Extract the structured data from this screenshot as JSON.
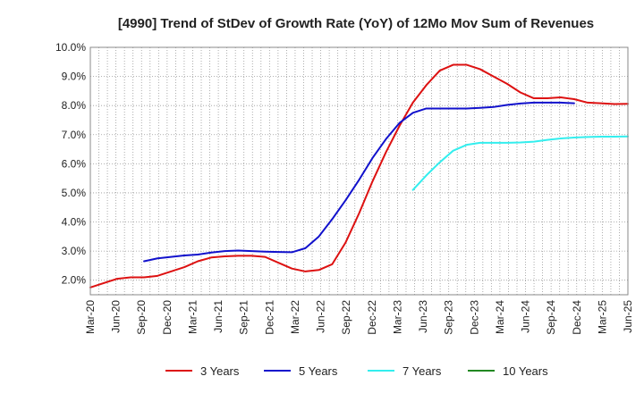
{
  "chart_data": {
    "type": "line",
    "title": "[4990]  Trend of StDev of Growth Rate (YoY) of 12Mo Mov Sum of Revenues",
    "xlabel": "",
    "ylabel": "",
    "y_unit": "%",
    "ylim": [
      1.5,
      10.0
    ],
    "y_ticks": [
      2.0,
      3.0,
      4.0,
      5.0,
      6.0,
      7.0,
      8.0,
      9.0,
      10.0
    ],
    "y_tick_labels": [
      "2.0%",
      "3.0%",
      "4.0%",
      "5.0%",
      "6.0%",
      "7.0%",
      "8.0%",
      "9.0%",
      "10.0%"
    ],
    "x_tick_labels": [
      "Mar-20",
      "Jun-20",
      "Sep-20",
      "Dec-20",
      "Mar-21",
      "Jun-21",
      "Sep-21",
      "Dec-21",
      "Mar-22",
      "Jun-22",
      "Sep-22",
      "Dec-22",
      "Mar-23",
      "Jun-23",
      "Sep-23",
      "Dec-23",
      "Mar-24",
      "Jun-24",
      "Sep-24",
      "Dec-24",
      "Mar-25",
      "Jun-25"
    ],
    "grid": true,
    "legend_position": "bottom",
    "series": [
      {
        "name": "3 Years",
        "color": "#dd1111",
        "start_index": 0,
        "values": [
          1.75,
          1.9,
          2.05,
          2.1,
          2.1,
          2.15,
          2.3,
          2.45,
          2.65,
          2.78,
          2.82,
          2.84,
          2.84,
          2.8,
          2.6,
          2.4,
          2.3,
          2.35,
          2.55,
          3.3,
          4.3,
          5.4,
          6.4,
          7.3,
          8.1,
          8.7,
          9.2,
          9.4,
          9.4,
          9.25,
          9.0,
          8.75,
          8.45,
          8.25,
          8.25,
          8.28,
          8.22,
          8.1,
          8.08,
          8.05,
          8.06
        ]
      },
      {
        "name": "5 Years",
        "color": "#1111cc",
        "start_index": 4,
        "values": [
          2.65,
          2.75,
          2.8,
          2.85,
          2.88,
          2.95,
          3.0,
          3.02,
          3.0,
          2.98,
          2.97,
          2.96,
          3.1,
          3.5,
          4.1,
          4.75,
          5.45,
          6.2,
          6.85,
          7.4,
          7.75,
          7.9,
          7.9,
          7.9,
          7.9,
          7.92,
          7.95,
          8.02,
          8.07,
          8.1,
          8.1,
          8.1,
          8.08
        ]
      },
      {
        "name": "7 Years",
        "color": "#33eeee",
        "start_index": 24,
        "values": [
          5.1,
          5.6,
          6.05,
          6.45,
          6.65,
          6.72,
          6.72,
          6.72,
          6.73,
          6.76,
          6.82,
          6.87,
          6.9,
          6.92,
          6.93,
          6.93,
          6.94
        ]
      },
      {
        "name": "10 Years",
        "color": "#228822",
        "start_index": 0,
        "values": []
      }
    ]
  }
}
